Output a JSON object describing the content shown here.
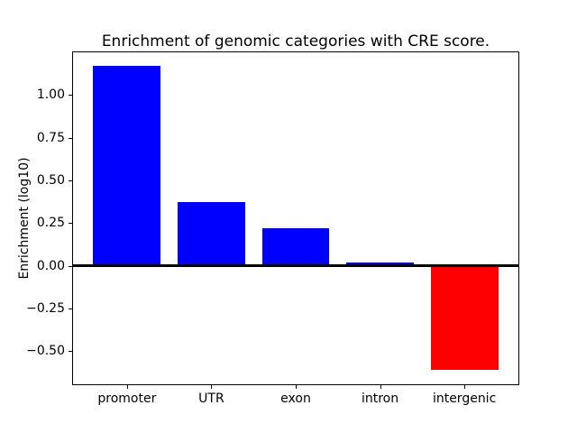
{
  "chart_data": {
    "type": "bar",
    "title": "Enrichment of genomic categories with CRE score.",
    "xlabel": "",
    "ylabel": "Enrichment (log10)",
    "categories": [
      "promoter",
      "UTR",
      "exon",
      "intron",
      "intergenic"
    ],
    "values": [
      1.17,
      0.37,
      0.22,
      0.02,
      -0.61
    ],
    "bar_colors": [
      "#0000ff",
      "#0000ff",
      "#0000ff",
      "#0000ff",
      "#ff0000"
    ],
    "positive_color": "#0000ff",
    "negative_color": "#ff0000",
    "bar_width": 0.8,
    "ylim": [
      -0.695,
      1.25
    ],
    "xlim": [
      -0.64,
      4.64
    ],
    "yticks": [
      1.0,
      0.75,
      0.5,
      0.25,
      0.0,
      -0.25,
      -0.5
    ],
    "ytick_labels": [
      "1.00",
      "0.75",
      "0.50",
      "0.25",
      "0.00",
      "−0.25",
      "−0.50"
    ],
    "zero_line": true,
    "zero_line_color": "#000000",
    "grid": false,
    "legend": null,
    "background_color": "#ffffff",
    "spines": "box"
  }
}
